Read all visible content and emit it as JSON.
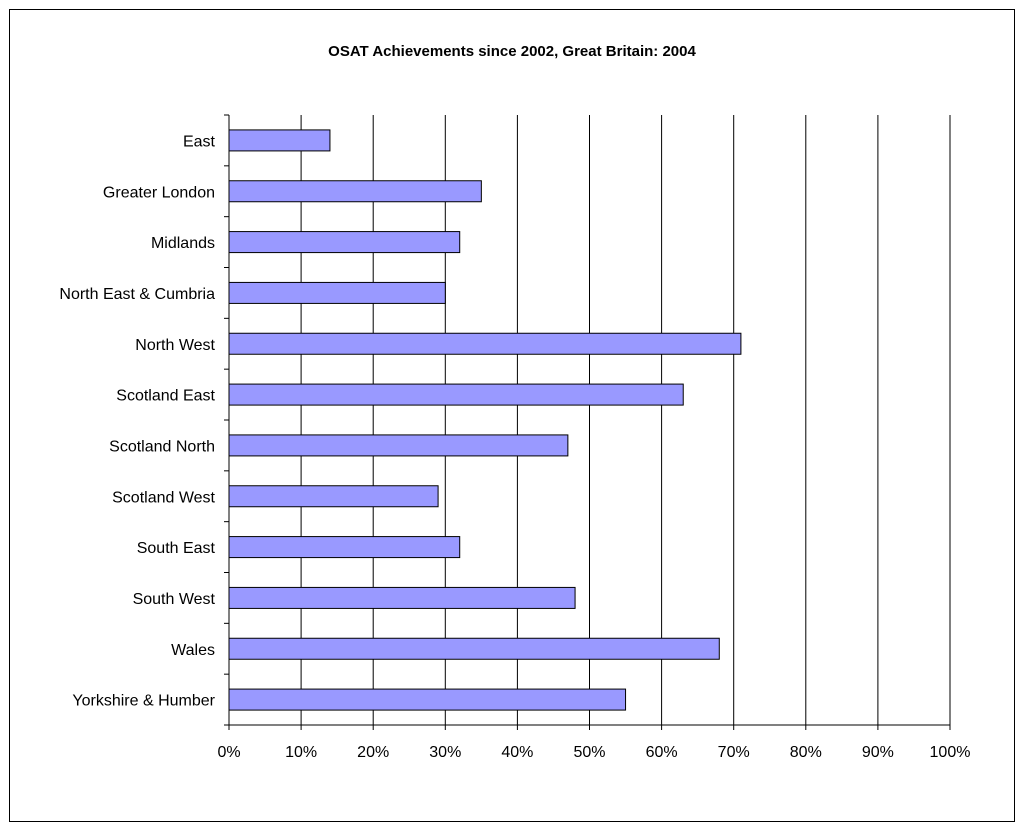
{
  "chart_data": {
    "type": "bar",
    "orientation": "horizontal",
    "title": "OSAT Achievements since 2002, Great Britain: 2004",
    "xlabel": "",
    "ylabel": "",
    "categories": [
      "East",
      "Greater London",
      "Midlands",
      "North East & Cumbria",
      "North West",
      "Scotland East",
      "Scotland North",
      "Scotland West",
      "South East",
      "South West",
      "Wales",
      "Yorkshire & Humber"
    ],
    "values": [
      0.14,
      0.35,
      0.32,
      0.3,
      0.71,
      0.63,
      0.47,
      0.29,
      0.32,
      0.48,
      0.68,
      0.55
    ],
    "xlim": [
      0,
      1
    ],
    "xticks": [
      "0%",
      "10%",
      "20%",
      "30%",
      "40%",
      "50%",
      "60%",
      "70%",
      "80%",
      "90%",
      "100%"
    ],
    "grid": "vertical",
    "legend": "none",
    "colors": {
      "bar_fill": "#9999ff",
      "bar_stroke": "#000000",
      "grid": "#000000"
    }
  }
}
